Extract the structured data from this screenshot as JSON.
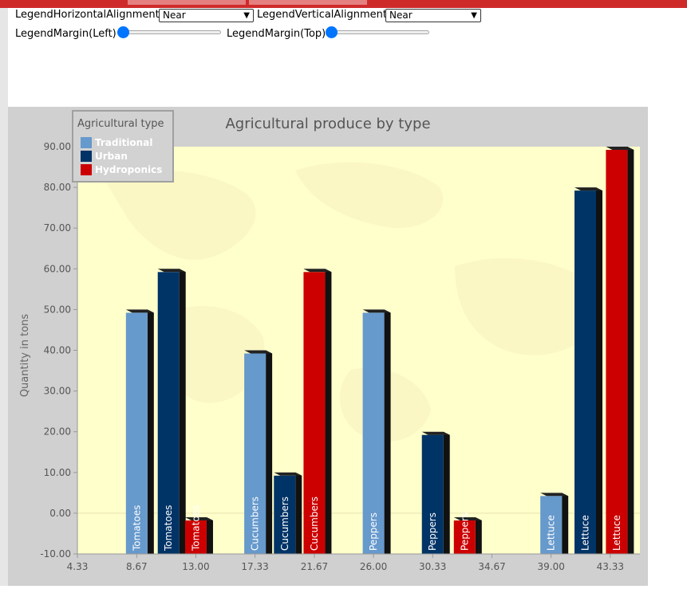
{
  "controls": {
    "h_align_label": "LegendHorizontalAlignment",
    "h_align_value": "Near",
    "v_align_label": "LegendVerticalAlignment",
    "v_align_value": "Near",
    "margin_left_label": "LegendMargin(Left)",
    "margin_left_value": 0,
    "margin_top_label": "LegendMargin(Top)",
    "margin_top_value": 0
  },
  "colors": {
    "traditional": "#6699cc",
    "urban": "#003366",
    "hydroponics": "#cc0000",
    "plot_bg": "#ffffcc",
    "outer_bg": "#d0d0d0"
  },
  "chart_data": {
    "type": "bar",
    "title": "Agricultural produce by type",
    "ylabel": "Quantity in tons",
    "xlabel": "",
    "ylim": [
      -10,
      90
    ],
    "xlim": [
      4.33,
      45.5
    ],
    "y_ticks": [
      "90.00",
      "80.00",
      "70.00",
      "60.00",
      "50.00",
      "40.00",
      "30.00",
      "20.00",
      "10.00",
      "0.00",
      "-10.00"
    ],
    "x_ticks": [
      "4.33",
      "8.67",
      "13.00",
      "17.33",
      "21.67",
      "26.00",
      "30.33",
      "34.67",
      "39.00",
      "43.33"
    ],
    "legend": {
      "title": "Agricultural type",
      "position": "top-left",
      "entries": [
        "Traditional",
        "Urban",
        "Hydroponics"
      ]
    },
    "series": [
      {
        "name": "Traditional",
        "color": "#6699cc",
        "x": [
          8.67,
          17.33,
          26.0,
          39.0
        ],
        "values": [
          50,
          40,
          50,
          5
        ],
        "labels": [
          "Tomatoes",
          "Cucumbers",
          "Peppers",
          "Lettuce"
        ]
      },
      {
        "name": "Urban",
        "color": "#003366",
        "x": [
          11.0,
          19.5,
          30.33,
          41.5
        ],
        "values": [
          60,
          10,
          20,
          80
        ],
        "labels": [
          "Tomatoes",
          "Cucumbers",
          "Peppers",
          "Lettuce"
        ]
      },
      {
        "name": "Hydroponics",
        "color": "#cc0000",
        "x": [
          13.0,
          21.67,
          32.67,
          43.8
        ],
        "values": [
          -1,
          60,
          -1,
          90
        ],
        "labels": [
          "Tomatoes",
          "Cucumbers",
          "Peppers",
          "Lettuce"
        ]
      }
    ]
  }
}
